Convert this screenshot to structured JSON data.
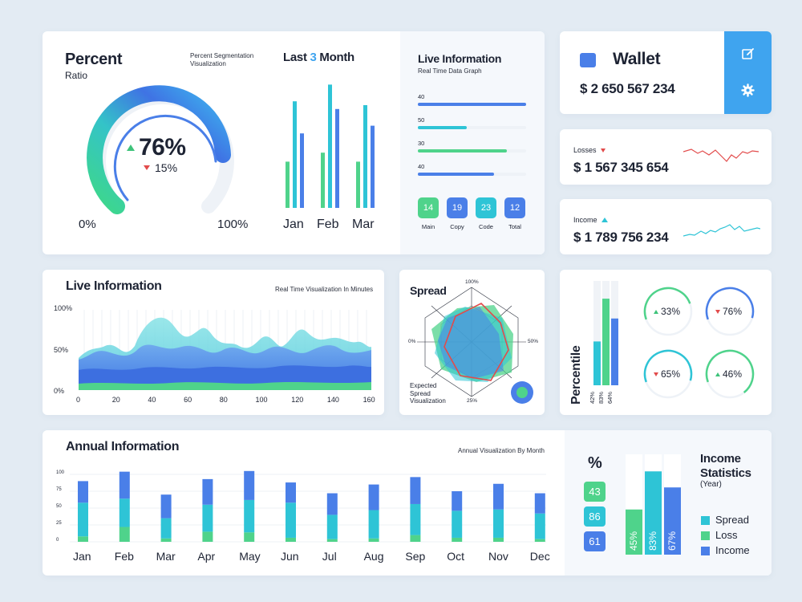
{
  "colors": {
    "blue": "#4a7fe8",
    "teal": "#2ec4d6",
    "green": "#4fd38b",
    "red": "#e24b4b",
    "wallet_accent": "#3fa4ef"
  },
  "percent": {
    "title": "Percent",
    "subtitle": "Ratio",
    "description": "Percent Segmentation Visualization",
    "main_value": "76%",
    "change_value": "15%",
    "range_min": "0%",
    "range_max": "100%",
    "gauge_fraction": 0.76
  },
  "last3": {
    "title_prefix": "Last ",
    "title_number": "3",
    "title_suffix": " Month",
    "months": [
      "Jan",
      "Feb",
      "Mar"
    ],
    "bars": [
      [
        0.36,
        0.83,
        0.58
      ],
      [
        0.43,
        0.96,
        0.77
      ],
      [
        0.36,
        0.8,
        0.64
      ]
    ]
  },
  "live_info_top": {
    "title": "Live Information",
    "subtitle": "Real Time Data Graph",
    "progress": [
      {
        "label": "40",
        "fraction": 1.0,
        "color": "#4a7fe8"
      },
      {
        "label": "50",
        "fraction": 0.45,
        "color": "#2ec4d6"
      },
      {
        "label": "30",
        "fraction": 0.82,
        "color": "#4fd38b"
      },
      {
        "label": "40",
        "fraction": 0.7,
        "color": "#4a7fe8"
      }
    ],
    "stats": [
      {
        "value": "14",
        "label": "Main",
        "color": "#4fd38b"
      },
      {
        "value": "19",
        "label": "Copy",
        "color": "#4a7fe8"
      },
      {
        "value": "23",
        "label": "Code",
        "color": "#2ec4d6"
      },
      {
        "value": "12",
        "label": "Total",
        "color": "#4a7fe8"
      }
    ]
  },
  "wallet": {
    "title": "Wallet",
    "amount": "$ 2 650 567 234",
    "edit_icon": "edit-icon",
    "settings_icon": "gear-icon"
  },
  "losses": {
    "label": "Losses",
    "amount": "$ 1 567 345 654"
  },
  "income": {
    "label": "Income",
    "amount": "$ 1 789 756 234"
  },
  "live_viz": {
    "title": "Live Information",
    "subtitle": "Real Time Visualization In Minutes",
    "y_ticks": [
      "100%",
      "50%",
      "0%"
    ],
    "x_ticks": [
      "0",
      "20",
      "40",
      "60",
      "80",
      "100",
      "120",
      "140",
      "160"
    ]
  },
  "spread": {
    "title": "Spread",
    "top_label": "100%",
    "left_label": "0%",
    "right_label": "50%",
    "bottom_label": "25%",
    "caption_1": "Expected",
    "caption_2": "Spread",
    "caption_3": "Visualization"
  },
  "percentile": {
    "title": "Percentile",
    "bars": [
      {
        "label": "42%",
        "fraction": 0.42,
        "color": "#2ec4d6"
      },
      {
        "label": "83%",
        "fraction": 0.83,
        "color": "#4fd38b"
      },
      {
        "label": "64%",
        "fraction": 0.64,
        "color": "#4a7fe8"
      }
    ],
    "rings": [
      {
        "label": "33%",
        "dir": "up",
        "fraction": 0.5,
        "color": "#4fd38b"
      },
      {
        "label": "76%",
        "dir": "down",
        "fraction": 0.6,
        "color": "#4a7fe8"
      },
      {
        "label": "65%",
        "dir": "down",
        "fraction": 0.6,
        "color": "#2ec4d6"
      },
      {
        "label": "46%",
        "dir": "up",
        "fraction": 0.7,
        "color": "#4fd38b"
      }
    ]
  },
  "annual": {
    "title": "Annual Information",
    "subtitle": "Annual Visualization By Month",
    "y_ticks": [
      "100",
      "75",
      "50",
      "25",
      "0"
    ],
    "months": [
      "Jan",
      "Feb",
      "Mar",
      "Apr",
      "May",
      "Jun",
      "Jul",
      "Aug",
      "Sep",
      "Oct",
      "Nov",
      "Dec"
    ],
    "totals": [
      90,
      104,
      70,
      93,
      105,
      88,
      72,
      85,
      96,
      75,
      86,
      72
    ],
    "seg_green": [
      8,
      22,
      5,
      15,
      14,
      6,
      4,
      5,
      10,
      6,
      6,
      4
    ],
    "seg_teal": [
      50,
      42,
      30,
      40,
      48,
      52,
      36,
      42,
      46,
      40,
      42,
      38
    ]
  },
  "income_stats": {
    "pct_label": "%",
    "pills": [
      {
        "value": "43",
        "color": "#4fd38b"
      },
      {
        "value": "86",
        "color": "#2ec4d6"
      },
      {
        "value": "61",
        "color": "#4a7fe8"
      }
    ],
    "bars": [
      {
        "label": "45%",
        "fraction": 0.45,
        "color": "#4fd38b"
      },
      {
        "label": "83%",
        "fraction": 0.83,
        "color": "#2ec4d6"
      },
      {
        "label": "67%",
        "fraction": 0.67,
        "color": "#4a7fe8"
      }
    ],
    "title_1": "Income",
    "title_2": "Statistics",
    "year": "(Year)",
    "legend": [
      {
        "label": "Spread",
        "color": "#2ec4d6"
      },
      {
        "label": "Loss",
        "color": "#4fd38b"
      },
      {
        "label": "Income",
        "color": "#4a7fe8"
      }
    ]
  }
}
